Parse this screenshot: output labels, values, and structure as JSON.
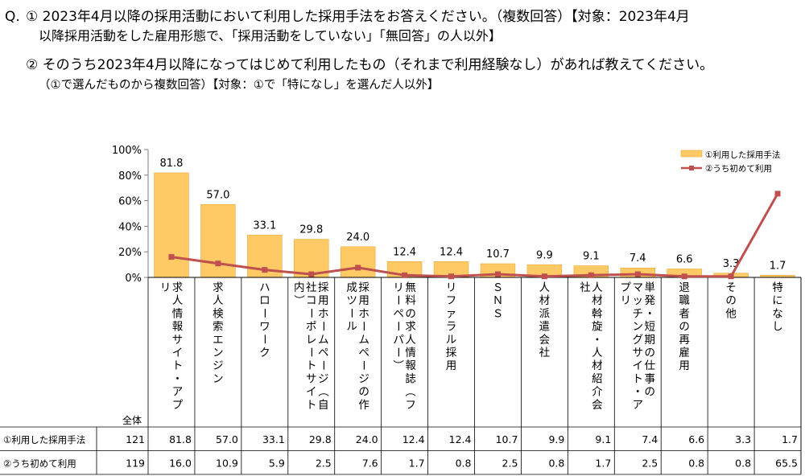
{
  "question": {
    "prefix": "Q.",
    "line1": "① 2023年4月以降の採用活動において利用した採用手法をお答えください。（複数回答）【対象：2023年4月",
    "line2": "以降採用活動をした雇用形態で、「採用活動をしていない」「無回答」の人以外】",
    "line3": "② そのうち2023年4月以降になってはじめて利用したもの（それまで利用経験なし）があれば教えてください。",
    "line4": "（①で選んだものから複数回答）【対象：①で「特になし」を選んだ人以外】"
  },
  "chart_data": {
    "type": "bar+line",
    "categories": [
      "求人情報サイト・アプリ",
      "求人検索エンジン",
      "ハローワーク",
      "採用ホームページ（自社コーポレートサイト内）",
      "採用ホームページの作成ツール",
      "無料の求人情報誌（フリーペーパー）",
      "リファラル採用",
      "SNS",
      "人材派遣会社",
      "人材斡旋・人材紹介会社",
      "単発・短期の仕事のマッチングサイト・アプリ",
      "退職者の再雇用",
      "その他",
      "特になし"
    ],
    "category_labels": [
      [
        "求人情報サイト・アプ",
        "リ"
      ],
      [
        "求人検索エンジン"
      ],
      [
        "ハローワーク"
      ],
      [
        "採用ホームページ（自",
        "社コーポレートサイト",
        "内）"
      ],
      [
        "採用ホームページの作",
        "成ツール"
      ],
      [
        "無料の求人情報誌（フ",
        "リーペーパー）"
      ],
      [
        "リファラル採用"
      ],
      [
        "ＳＮＳ"
      ],
      [
        "人材派遣会社"
      ],
      [
        "人材斡旋・人材紹介会",
        "社"
      ],
      [
        "単発・短期の仕事の",
        "マッチングサイト・ア",
        "プリ"
      ],
      [
        "退職者の再雇用"
      ],
      [
        "その他"
      ],
      [
        "特になし"
      ]
    ],
    "series": [
      {
        "name": "①利用した採用手法",
        "kind": "bar",
        "color": "#FFC966",
        "values": [
          81.8,
          57.0,
          33.1,
          29.8,
          24.0,
          12.4,
          12.4,
          10.7,
          9.9,
          9.1,
          7.4,
          6.6,
          3.3,
          1.7
        ]
      },
      {
        "name": "②うち初めて利用",
        "kind": "line",
        "color": "#C0504D",
        "values": [
          16.0,
          10.9,
          5.9,
          2.5,
          7.6,
          1.7,
          0.8,
          2.5,
          0.8,
          1.7,
          2.5,
          0.8,
          0.8,
          65.5
        ]
      }
    ],
    "bar_labels": [
      "81.8",
      "57.0",
      "33.1",
      "29.8",
      "24.0",
      "12.4",
      "12.4",
      "10.7",
      "9.9",
      "9.1",
      "7.4",
      "6.6",
      "3.3",
      "1.7"
    ],
    "ylim": [
      0,
      100
    ],
    "yticks": [
      "0%",
      "20%",
      "40%",
      "60%",
      "80%",
      "100%"
    ],
    "legend_position": "top-right"
  },
  "table": {
    "total_header": "全体",
    "rows": [
      {
        "label": "①利用した採用手法",
        "total": "121",
        "values": [
          "81.8",
          "57.0",
          "33.1",
          "29.8",
          "24.0",
          "12.4",
          "12.4",
          "10.7",
          "9.9",
          "9.1",
          "7.4",
          "6.6",
          "3.3",
          "1.7"
        ]
      },
      {
        "label": "②うち初めて利用",
        "total": "119",
        "values": [
          "16.0",
          "10.9",
          "5.9",
          "2.5",
          "7.6",
          "1.7",
          "0.8",
          "2.5",
          "0.8",
          "1.7",
          "2.5",
          "0.8",
          "0.8",
          "65.5"
        ]
      }
    ]
  }
}
